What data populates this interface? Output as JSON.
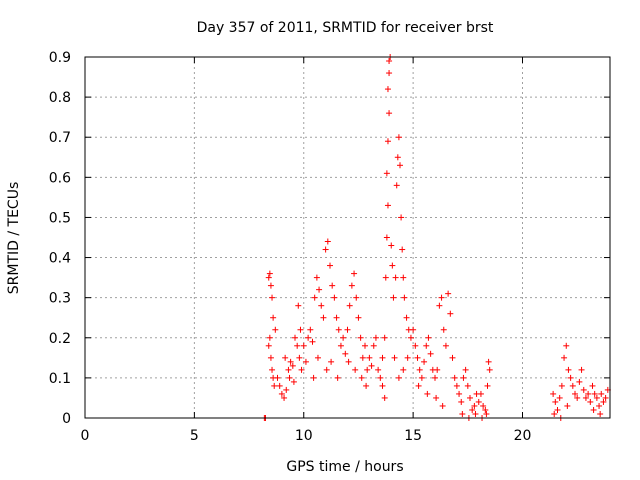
{
  "chart_data": {
    "type": "scatter",
    "title": "Day 357 of 2011, SRMTID for receiver brst",
    "xlabel": "GPS time / hours",
    "ylabel": "SRMTID / TECUs",
    "xlim": [
      0,
      24
    ],
    "ylim": [
      0,
      0.9
    ],
    "xticks": [
      0,
      5,
      10,
      15,
      20
    ],
    "yticks": [
      0,
      0.1,
      0.2,
      0.3,
      0.4,
      0.5,
      0.6,
      0.7,
      0.8,
      0.9
    ],
    "grid": true,
    "marker": "plus",
    "color": "#ff0000",
    "series": [
      {
        "points": [
          [
            8.2,
            0.0
          ],
          [
            8.25,
            0.0
          ],
          [
            8.4,
            0.35
          ],
          [
            8.45,
            0.36
          ],
          [
            8.5,
            0.33
          ],
          [
            8.55,
            0.3
          ],
          [
            8.6,
            0.25
          ],
          [
            8.45,
            0.2
          ],
          [
            8.5,
            0.15
          ],
          [
            8.55,
            0.12
          ],
          [
            8.6,
            0.1
          ],
          [
            8.4,
            0.18
          ],
          [
            8.65,
            0.08
          ],
          [
            8.7,
            0.22
          ],
          [
            8.8,
            0.1
          ],
          [
            8.9,
            0.08
          ],
          [
            9.0,
            0.06
          ],
          [
            9.1,
            0.05
          ],
          [
            9.2,
            0.07
          ],
          [
            9.3,
            0.12
          ],
          [
            9.4,
            0.14
          ],
          [
            9.5,
            0.13
          ],
          [
            9.6,
            0.2
          ],
          [
            9.7,
            0.18
          ],
          [
            9.8,
            0.15
          ],
          [
            9.9,
            0.12
          ],
          [
            9.15,
            0.15
          ],
          [
            9.35,
            0.1
          ],
          [
            9.55,
            0.09
          ],
          [
            9.75,
            0.28
          ],
          [
            9.85,
            0.22
          ],
          [
            10.0,
            0.18
          ],
          [
            10.1,
            0.14
          ],
          [
            10.2,
            0.2
          ],
          [
            10.3,
            0.22
          ],
          [
            10.4,
            0.19
          ],
          [
            10.5,
            0.3
          ],
          [
            10.6,
            0.35
          ],
          [
            10.7,
            0.32
          ],
          [
            10.8,
            0.28
          ],
          [
            10.9,
            0.25
          ],
          [
            11.0,
            0.42
          ],
          [
            11.1,
            0.44
          ],
          [
            11.2,
            0.38
          ],
          [
            11.3,
            0.33
          ],
          [
            11.4,
            0.3
          ],
          [
            11.5,
            0.25
          ],
          [
            11.6,
            0.22
          ],
          [
            11.7,
            0.18
          ],
          [
            11.8,
            0.2
          ],
          [
            11.9,
            0.16
          ],
          [
            10.45,
            0.1
          ],
          [
            10.65,
            0.15
          ],
          [
            11.05,
            0.12
          ],
          [
            11.25,
            0.14
          ],
          [
            11.55,
            0.1
          ],
          [
            12.0,
            0.22
          ],
          [
            12.1,
            0.28
          ],
          [
            12.2,
            0.33
          ],
          [
            12.3,
            0.36
          ],
          [
            12.4,
            0.3
          ],
          [
            12.5,
            0.25
          ],
          [
            12.6,
            0.2
          ],
          [
            12.7,
            0.15
          ],
          [
            12.8,
            0.18
          ],
          [
            12.9,
            0.12
          ],
          [
            12.05,
            0.14
          ],
          [
            12.35,
            0.12
          ],
          [
            12.65,
            0.1
          ],
          [
            12.85,
            0.08
          ],
          [
            13.0,
            0.15
          ],
          [
            13.1,
            0.13
          ],
          [
            13.2,
            0.18
          ],
          [
            13.3,
            0.2
          ],
          [
            13.4,
            0.12
          ],
          [
            13.5,
            0.1
          ],
          [
            13.6,
            0.15
          ],
          [
            13.7,
            0.2
          ],
          [
            13.75,
            0.35
          ],
          [
            13.8,
            0.45
          ],
          [
            13.85,
            0.53
          ],
          [
            13.8,
            0.61
          ],
          [
            13.85,
            0.69
          ],
          [
            13.9,
            0.76
          ],
          [
            13.85,
            0.82
          ],
          [
            13.9,
            0.86
          ],
          [
            13.95,
            0.9
          ],
          [
            13.9,
            0.89
          ],
          [
            14.0,
            0.43
          ],
          [
            14.05,
            0.38
          ],
          [
            13.7,
            0.05
          ],
          [
            13.6,
            0.08
          ],
          [
            14.1,
            0.3
          ],
          [
            14.2,
            0.35
          ],
          [
            14.25,
            0.58
          ],
          [
            14.3,
            0.65
          ],
          [
            14.35,
            0.7
          ],
          [
            14.4,
            0.63
          ],
          [
            14.45,
            0.5
          ],
          [
            14.5,
            0.42
          ],
          [
            14.55,
            0.35
          ],
          [
            14.6,
            0.3
          ],
          [
            14.7,
            0.25
          ],
          [
            14.8,
            0.22
          ],
          [
            14.9,
            0.2
          ],
          [
            14.15,
            0.15
          ],
          [
            14.35,
            0.1
          ],
          [
            14.55,
            0.12
          ],
          [
            14.75,
            0.15
          ],
          [
            15.0,
            0.22
          ],
          [
            15.1,
            0.18
          ],
          [
            15.2,
            0.15
          ],
          [
            15.3,
            0.12
          ],
          [
            15.4,
            0.1
          ],
          [
            15.5,
            0.14
          ],
          [
            15.6,
            0.18
          ],
          [
            15.7,
            0.2
          ],
          [
            15.8,
            0.16
          ],
          [
            15.9,
            0.12
          ],
          [
            15.25,
            0.08
          ],
          [
            15.65,
            0.06
          ],
          [
            16.0,
            0.1
          ],
          [
            16.1,
            0.12
          ],
          [
            16.2,
            0.28
          ],
          [
            16.3,
            0.3
          ],
          [
            16.4,
            0.22
          ],
          [
            16.5,
            0.18
          ],
          [
            16.6,
            0.31
          ],
          [
            16.7,
            0.26
          ],
          [
            16.8,
            0.15
          ],
          [
            16.9,
            0.1
          ],
          [
            16.05,
            0.05
          ],
          [
            16.35,
            0.03
          ],
          [
            17.0,
            0.08
          ],
          [
            17.1,
            0.06
          ],
          [
            17.2,
            0.04
          ],
          [
            17.3,
            0.1
          ],
          [
            17.4,
            0.12
          ],
          [
            17.5,
            0.08
          ],
          [
            17.6,
            0.05
          ],
          [
            17.7,
            0.02
          ],
          [
            17.8,
            0.03
          ],
          [
            17.9,
            0.06
          ],
          [
            17.25,
            0.01
          ],
          [
            17.55,
            0.0
          ],
          [
            17.85,
            0.01
          ],
          [
            18.0,
            0.04
          ],
          [
            18.1,
            0.06
          ],
          [
            18.2,
            0.03
          ],
          [
            18.3,
            0.02
          ],
          [
            18.4,
            0.08
          ],
          [
            18.45,
            0.14
          ],
          [
            18.5,
            0.12
          ],
          [
            18.15,
            0.0
          ],
          [
            18.35,
            0.01
          ],
          [
            21.4,
            0.06
          ],
          [
            21.5,
            0.04
          ],
          [
            21.6,
            0.02
          ],
          [
            21.7,
            0.05
          ],
          [
            21.8,
            0.08
          ],
          [
            21.9,
            0.15
          ],
          [
            22.0,
            0.18
          ],
          [
            22.1,
            0.12
          ],
          [
            22.2,
            0.1
          ],
          [
            22.3,
            0.08
          ],
          [
            22.4,
            0.06
          ],
          [
            22.5,
            0.05
          ],
          [
            22.6,
            0.09
          ],
          [
            22.7,
            0.12
          ],
          [
            22.8,
            0.07
          ],
          [
            22.9,
            0.05
          ],
          [
            21.45,
            0.01
          ],
          [
            21.75,
            0.0
          ],
          [
            22.05,
            0.03
          ],
          [
            23.0,
            0.06
          ],
          [
            23.1,
            0.04
          ],
          [
            23.2,
            0.08
          ],
          [
            23.3,
            0.06
          ],
          [
            23.4,
            0.05
          ],
          [
            23.5,
            0.03
          ],
          [
            23.6,
            0.06
          ],
          [
            23.7,
            0.04
          ],
          [
            23.8,
            0.05
          ],
          [
            23.9,
            0.07
          ],
          [
            23.25,
            0.02
          ],
          [
            23.55,
            0.01
          ]
        ]
      }
    ]
  }
}
